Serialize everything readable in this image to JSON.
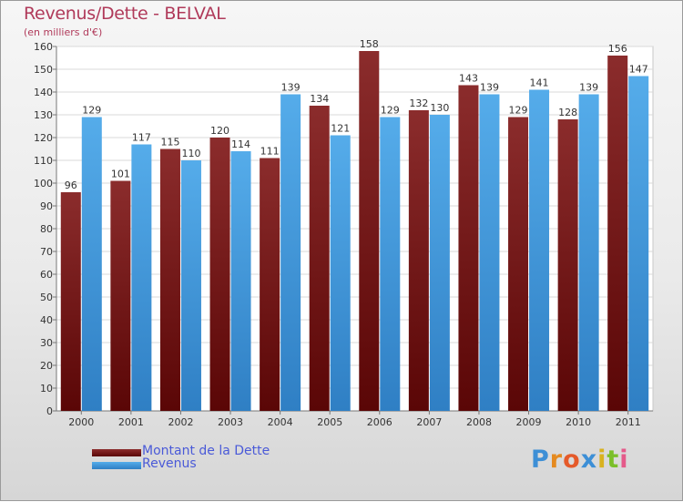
{
  "chart_data": {
    "type": "bar",
    "title": "Revenus/Dette - BELVAL",
    "subtitle": "(en milliers d'€)",
    "categories": [
      "2000",
      "2001",
      "2002",
      "2003",
      "2004",
      "2005",
      "2006",
      "2007",
      "2008",
      "2009",
      "2010",
      "2011"
    ],
    "series": [
      {
        "name": "Montant de la Dette",
        "color": "#7a1a1a",
        "values": [
          96,
          101,
          115,
          120,
          111,
          134,
          158,
          132,
          143,
          129,
          128,
          156
        ]
      },
      {
        "name": "Revenus",
        "color": "#3d9be6",
        "values": [
          129,
          117,
          110,
          114,
          139,
          121,
          129,
          130,
          139,
          141,
          139,
          147
        ]
      }
    ],
    "ylim": [
      0,
      160
    ],
    "yticks": [
      0,
      10,
      20,
      30,
      40,
      50,
      60,
      70,
      80,
      90,
      100,
      110,
      120,
      130,
      140,
      150,
      160
    ],
    "grid": true,
    "legend_position": "bottom-left",
    "xlabel": "",
    "ylabel": ""
  },
  "logo": {
    "text": "Proxiti",
    "letters": [
      {
        "char": "P",
        "color": "#3d8fd6"
      },
      {
        "char": "r",
        "color": "#e58a1f"
      },
      {
        "char": "o",
        "color": "#e55a2a"
      },
      {
        "char": "x",
        "color": "#3d8fd6"
      },
      {
        "char": "i",
        "color": "#d9b21f"
      },
      {
        "char": "t",
        "color": "#7bbf2a"
      },
      {
        "char": "i",
        "color": "#e55a8a"
      }
    ]
  }
}
